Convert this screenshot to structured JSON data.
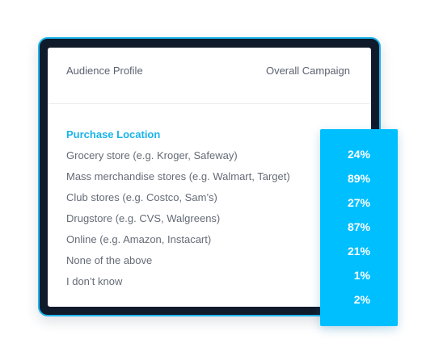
{
  "header": {
    "left_label": "Audience Profile",
    "right_label": "Overall Campaign"
  },
  "section": {
    "title": "Purchase Location"
  },
  "rows": [
    {
      "label": "Grocery store (e.g. Kroger, Safeway)",
      "value": "24%"
    },
    {
      "label": "Mass merchandise stores (e.g. Walmart, Target)",
      "value": "89%"
    },
    {
      "label": "Club stores (e.g. Costco, Sam’s)",
      "value": "27%"
    },
    {
      "label": "Drugstore (e.g. CVS, Walgreens)",
      "value": "87%"
    },
    {
      "label": "Online (e.g. Amazon, Instacart)",
      "value": "21%"
    },
    {
      "label": "None of the above",
      "value": "1%"
    },
    {
      "label": "I don’t know",
      "value": "2%"
    }
  ],
  "colors": {
    "accent": "#00bfff",
    "device_frame": "#0f1a2b",
    "device_border": "#1fb6ef",
    "section_title": "#1ab3ea",
    "body_text": "#646b76"
  }
}
